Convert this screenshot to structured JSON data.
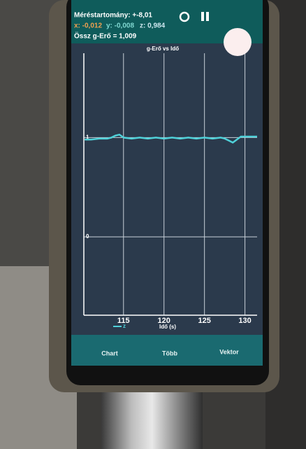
{
  "header": {
    "range": "Méréstartomány: +-8,01",
    "x": "x: -0,012",
    "y": "y: -0,008",
    "z": "z: 0,984",
    "total": "Össz g-Erő = 1,009"
  },
  "chart_data": {
    "type": "line",
    "title": "g-Erő vs Idő",
    "x_label": "Idő (s)",
    "xlim": [
      110.1,
      131.5
    ],
    "ylim": [
      -0.79,
      1.85
    ],
    "xticks": [
      115,
      120,
      125,
      130
    ],
    "yticks": [
      0,
      1
    ],
    "grid": true,
    "series": [
      {
        "name": "z",
        "color": "#4fd1d9",
        "x": [
          110.2,
          111,
          112,
          113,
          113.5,
          114,
          114.5,
          115,
          116,
          117,
          118,
          119,
          120,
          121,
          122,
          123,
          124,
          125,
          126,
          127,
          127.5,
          128,
          128.5,
          129,
          129.5,
          130,
          131,
          131.5
        ],
        "values": [
          0.98,
          0.98,
          0.99,
          0.99,
          1.0,
          1.02,
          1.03,
          1.0,
          0.99,
          1.0,
          0.99,
          1.0,
          0.99,
          1.0,
          0.99,
          1.0,
          0.99,
          1.0,
          0.99,
          1.0,
          0.99,
          0.97,
          0.95,
          0.98,
          1.01,
          1.01,
          1.01,
          1.01
        ]
      }
    ]
  },
  "nav": [
    "Chart",
    "Több",
    "Vektor"
  ]
}
